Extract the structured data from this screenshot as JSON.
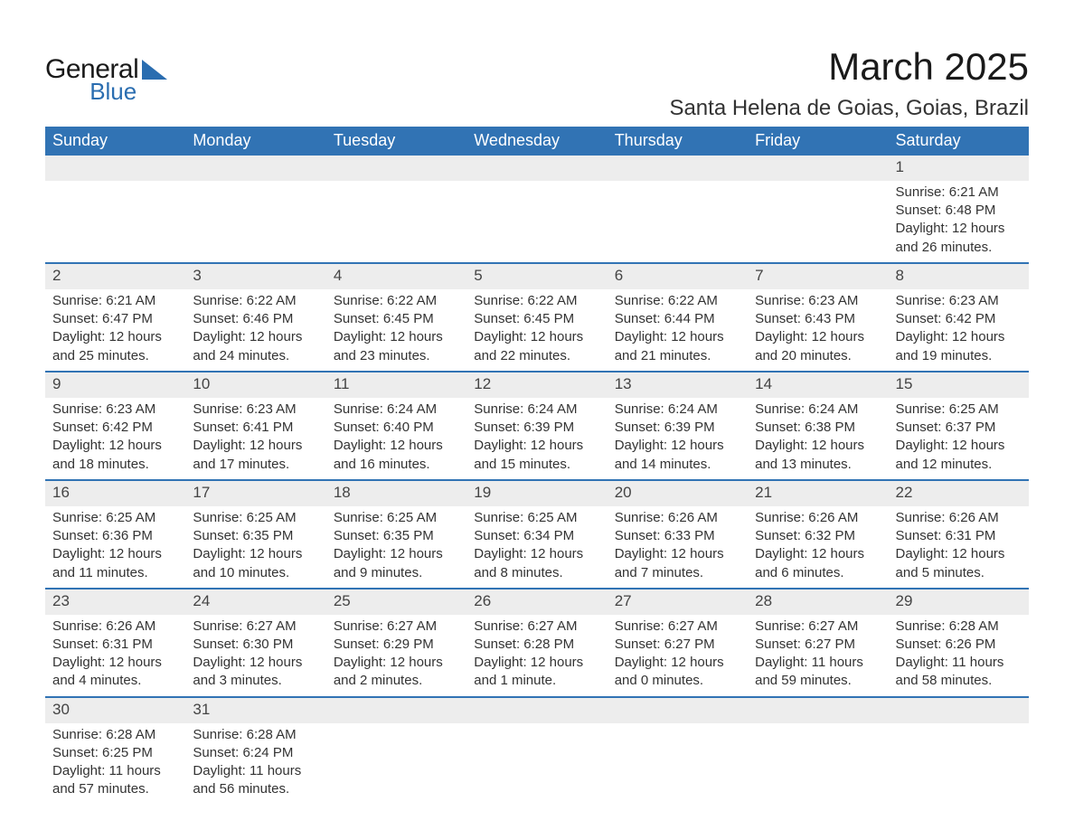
{
  "brand": {
    "line1": "General",
    "line2": "Blue"
  },
  "title": "March 2025",
  "location": "Santa Helena de Goias, Goias, Brazil",
  "colors": {
    "header_bg": "#3173b4",
    "header_text": "#ffffff",
    "row_divider": "#3173b4",
    "daynum_bg": "#ededed",
    "body_text": "#333333",
    "logo_accent": "#2a6db0",
    "page_bg": "#ffffff"
  },
  "typography": {
    "title_fontsize": 42,
    "location_fontsize": 24,
    "weekday_fontsize": 18,
    "daynum_fontsize": 17,
    "cell_fontsize": 15
  },
  "calendar": {
    "type": "table",
    "weekdays": [
      "Sunday",
      "Monday",
      "Tuesday",
      "Wednesday",
      "Thursday",
      "Friday",
      "Saturday"
    ],
    "start_weekday_index": 6,
    "days": [
      {
        "n": 1,
        "sunrise": "6:21 AM",
        "sunset": "6:48 PM",
        "daylight": "12 hours and 26 minutes."
      },
      {
        "n": 2,
        "sunrise": "6:21 AM",
        "sunset": "6:47 PM",
        "daylight": "12 hours and 25 minutes."
      },
      {
        "n": 3,
        "sunrise": "6:22 AM",
        "sunset": "6:46 PM",
        "daylight": "12 hours and 24 minutes."
      },
      {
        "n": 4,
        "sunrise": "6:22 AM",
        "sunset": "6:45 PM",
        "daylight": "12 hours and 23 minutes."
      },
      {
        "n": 5,
        "sunrise": "6:22 AM",
        "sunset": "6:45 PM",
        "daylight": "12 hours and 22 minutes."
      },
      {
        "n": 6,
        "sunrise": "6:22 AM",
        "sunset": "6:44 PM",
        "daylight": "12 hours and 21 minutes."
      },
      {
        "n": 7,
        "sunrise": "6:23 AM",
        "sunset": "6:43 PM",
        "daylight": "12 hours and 20 minutes."
      },
      {
        "n": 8,
        "sunrise": "6:23 AM",
        "sunset": "6:42 PM",
        "daylight": "12 hours and 19 minutes."
      },
      {
        "n": 9,
        "sunrise": "6:23 AM",
        "sunset": "6:42 PM",
        "daylight": "12 hours and 18 minutes."
      },
      {
        "n": 10,
        "sunrise": "6:23 AM",
        "sunset": "6:41 PM",
        "daylight": "12 hours and 17 minutes."
      },
      {
        "n": 11,
        "sunrise": "6:24 AM",
        "sunset": "6:40 PM",
        "daylight": "12 hours and 16 minutes."
      },
      {
        "n": 12,
        "sunrise": "6:24 AM",
        "sunset": "6:39 PM",
        "daylight": "12 hours and 15 minutes."
      },
      {
        "n": 13,
        "sunrise": "6:24 AM",
        "sunset": "6:39 PM",
        "daylight": "12 hours and 14 minutes."
      },
      {
        "n": 14,
        "sunrise": "6:24 AM",
        "sunset": "6:38 PM",
        "daylight": "12 hours and 13 minutes."
      },
      {
        "n": 15,
        "sunrise": "6:25 AM",
        "sunset": "6:37 PM",
        "daylight": "12 hours and 12 minutes."
      },
      {
        "n": 16,
        "sunrise": "6:25 AM",
        "sunset": "6:36 PM",
        "daylight": "12 hours and 11 minutes."
      },
      {
        "n": 17,
        "sunrise": "6:25 AM",
        "sunset": "6:35 PM",
        "daylight": "12 hours and 10 minutes."
      },
      {
        "n": 18,
        "sunrise": "6:25 AM",
        "sunset": "6:35 PM",
        "daylight": "12 hours and 9 minutes."
      },
      {
        "n": 19,
        "sunrise": "6:25 AM",
        "sunset": "6:34 PM",
        "daylight": "12 hours and 8 minutes."
      },
      {
        "n": 20,
        "sunrise": "6:26 AM",
        "sunset": "6:33 PM",
        "daylight": "12 hours and 7 minutes."
      },
      {
        "n": 21,
        "sunrise": "6:26 AM",
        "sunset": "6:32 PM",
        "daylight": "12 hours and 6 minutes."
      },
      {
        "n": 22,
        "sunrise": "6:26 AM",
        "sunset": "6:31 PM",
        "daylight": "12 hours and 5 minutes."
      },
      {
        "n": 23,
        "sunrise": "6:26 AM",
        "sunset": "6:31 PM",
        "daylight": "12 hours and 4 minutes."
      },
      {
        "n": 24,
        "sunrise": "6:27 AM",
        "sunset": "6:30 PM",
        "daylight": "12 hours and 3 minutes."
      },
      {
        "n": 25,
        "sunrise": "6:27 AM",
        "sunset": "6:29 PM",
        "daylight": "12 hours and 2 minutes."
      },
      {
        "n": 26,
        "sunrise": "6:27 AM",
        "sunset": "6:28 PM",
        "daylight": "12 hours and 1 minute."
      },
      {
        "n": 27,
        "sunrise": "6:27 AM",
        "sunset": "6:27 PM",
        "daylight": "12 hours and 0 minutes."
      },
      {
        "n": 28,
        "sunrise": "6:27 AM",
        "sunset": "6:27 PM",
        "daylight": "11 hours and 59 minutes."
      },
      {
        "n": 29,
        "sunrise": "6:28 AM",
        "sunset": "6:26 PM",
        "daylight": "11 hours and 58 minutes."
      },
      {
        "n": 30,
        "sunrise": "6:28 AM",
        "sunset": "6:25 PM",
        "daylight": "11 hours and 57 minutes."
      },
      {
        "n": 31,
        "sunrise": "6:28 AM",
        "sunset": "6:24 PM",
        "daylight": "11 hours and 56 minutes."
      }
    ],
    "labels": {
      "sunrise": "Sunrise: ",
      "sunset": "Sunset: ",
      "daylight": "Daylight: "
    }
  }
}
